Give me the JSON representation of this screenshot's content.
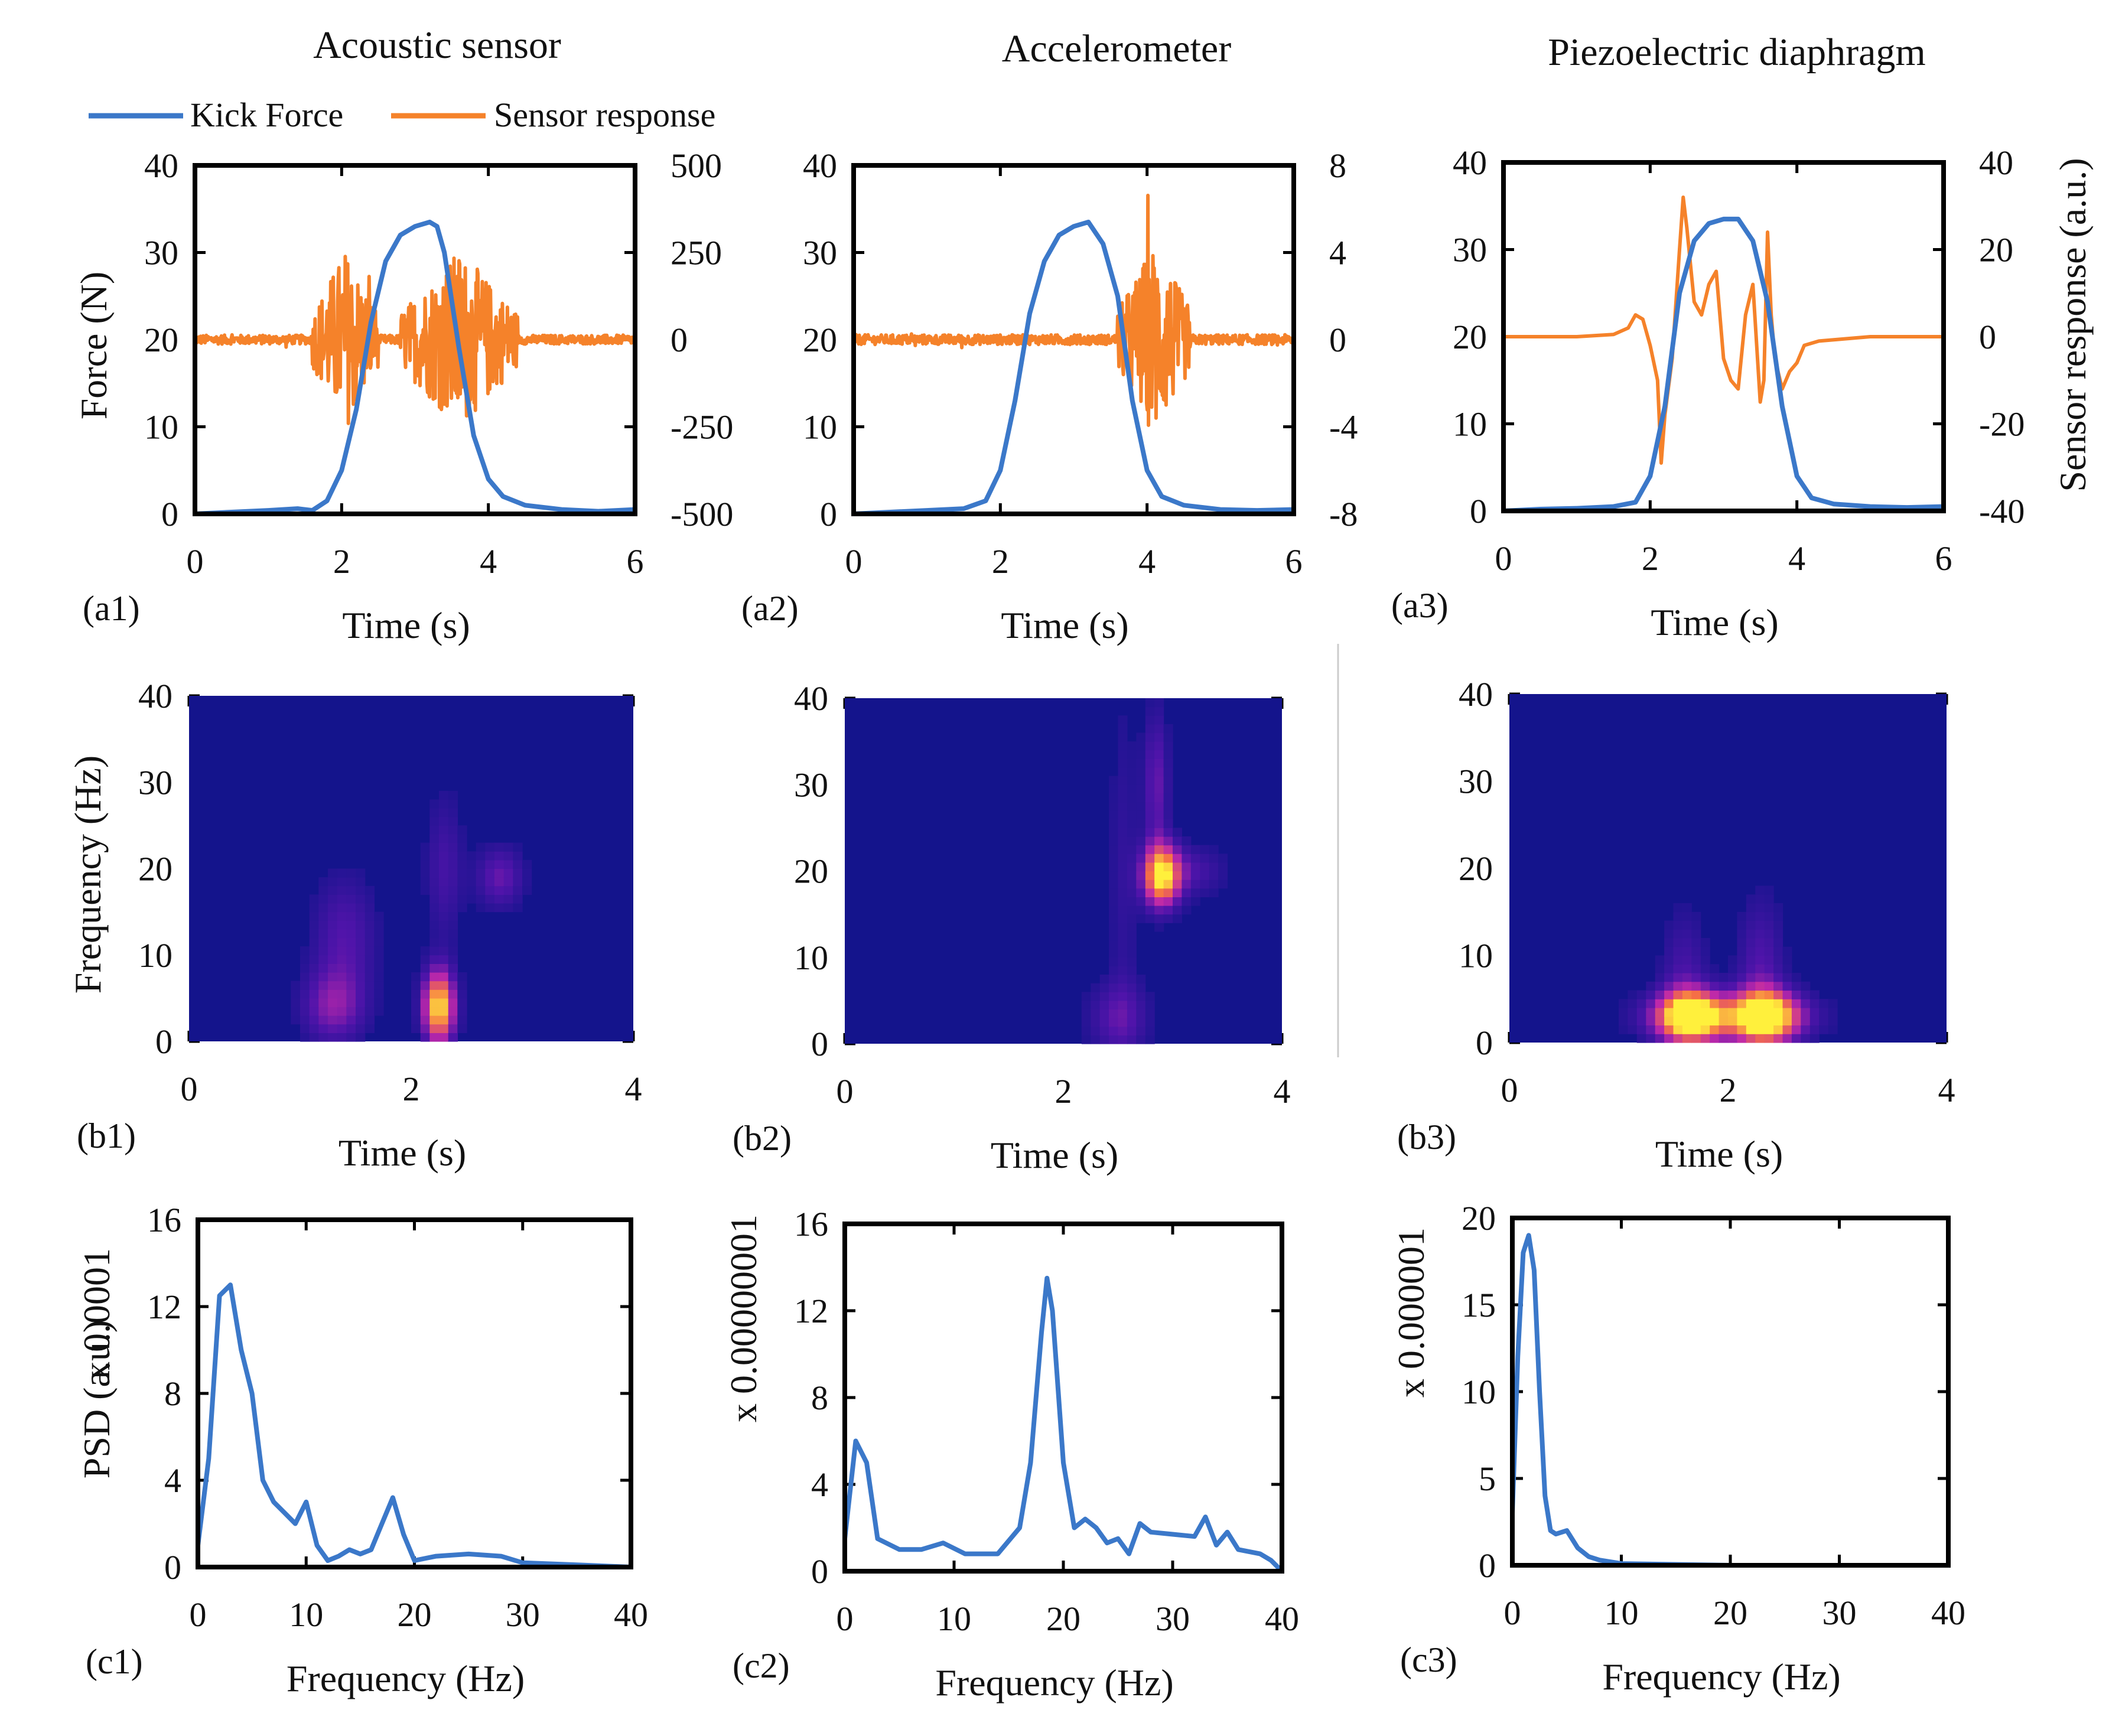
{
  "colors": {
    "force": "#3b78c9",
    "sensor": "#f5822a",
    "spec_bg": "#14148c"
  },
  "column_titles": [
    "Acoustic sensor",
    "Accelerometer",
    "Piezoelectric diaphragm"
  ],
  "legend": {
    "force": "Kick Force",
    "sensor": "Sensor response"
  },
  "chart_data": [
    {
      "id": "a1",
      "type": "line",
      "panel_label": "(a1)",
      "xlabel": "Time (s)",
      "ylabel": "Force (N)",
      "xlim": [
        0,
        6
      ],
      "xticks": [
        "0",
        "2",
        "4",
        "6"
      ],
      "ylim": [
        0,
        40
      ],
      "yticks": [
        "0",
        "10",
        "20",
        "30",
        "40"
      ],
      "y2lim": [
        -500,
        500
      ],
      "y2ticks": [
        "-500",
        "-250",
        "0",
        "250",
        "500"
      ],
      "series": [
        {
          "name": "Kick Force",
          "axis": "left",
          "x": [
            0,
            0.5,
            1,
            1.4,
            1.6,
            1.8,
            2.0,
            2.2,
            2.4,
            2.6,
            2.8,
            3.0,
            3.2,
            3.3,
            3.4,
            3.6,
            3.8,
            4.0,
            4.2,
            4.5,
            5,
            5.5,
            6
          ],
          "y": [
            0,
            0.2,
            0.4,
            0.6,
            0.4,
            1.5,
            5,
            12,
            22,
            29,
            32,
            33,
            33.5,
            33,
            30,
            19,
            9,
            4,
            2,
            1,
            0.5,
            0.3,
            0.5
          ]
        },
        {
          "name": "Sensor response",
          "axis": "right",
          "kind": "burst",
          "amplitude": 260,
          "ranges": [
            [
              1.6,
              2.5
            ],
            [
              2.8,
              4.4
            ]
          ]
        }
      ]
    },
    {
      "id": "a2",
      "type": "line",
      "panel_label": "(a2)",
      "xlabel": "Time (s)",
      "ylabel": "",
      "xlim": [
        0,
        6
      ],
      "xticks": [
        "0",
        "2",
        "4",
        "6"
      ],
      "ylim": [
        0,
        40
      ],
      "yticks": [
        "0",
        "10",
        "20",
        "30",
        "40"
      ],
      "y2lim": [
        -8,
        8
      ],
      "y2ticks": [
        "-8",
        "-4",
        "0",
        "4",
        "8"
      ],
      "series": [
        {
          "name": "Kick Force",
          "axis": "left",
          "x": [
            0,
            0.5,
            1,
            1.5,
            1.8,
            2.0,
            2.2,
            2.4,
            2.6,
            2.8,
            3.0,
            3.2,
            3.4,
            3.6,
            3.8,
            4.0,
            4.2,
            4.5,
            5,
            5.5,
            6
          ],
          "y": [
            0,
            0.2,
            0.4,
            0.6,
            1.5,
            5,
            13,
            23,
            29,
            32,
            33,
            33.5,
            31,
            25,
            13,
            5,
            2,
            1,
            0.5,
            0.4,
            0.5
          ]
        },
        {
          "name": "Sensor response",
          "axis": "right",
          "kind": "burst",
          "amplitude": 4.5,
          "ranges": [
            [
              3.6,
              4.6
            ]
          ]
        }
      ]
    },
    {
      "id": "a3",
      "type": "line",
      "panel_label": "(a3)",
      "xlabel": "Time (s)",
      "ylabel": "",
      "y2label": "Sensor response (a.u.)",
      "xlim": [
        0,
        6
      ],
      "xticks": [
        "0",
        "2",
        "4",
        "6"
      ],
      "ylim": [
        0,
        40
      ],
      "yticks": [
        "0",
        "10",
        "20",
        "30",
        "40"
      ],
      "y2lim": [
        -40,
        40
      ],
      "y2ticks": [
        "-40",
        "-20",
        "0",
        "20",
        "40"
      ],
      "series": [
        {
          "name": "Kick Force",
          "axis": "left",
          "x": [
            0,
            0.5,
            1,
            1.5,
            1.8,
            2.0,
            2.2,
            2.4,
            2.6,
            2.8,
            3.0,
            3.2,
            3.4,
            3.6,
            3.8,
            4.0,
            4.2,
            4.5,
            5,
            5.5,
            6
          ],
          "y": [
            0,
            0.2,
            0.3,
            0.5,
            1,
            4,
            12,
            25,
            31,
            33,
            33.5,
            33.5,
            31,
            24,
            12,
            4,
            1.5,
            0.8,
            0.5,
            0.4,
            0.5
          ]
        },
        {
          "name": "Sensor response",
          "axis": "right",
          "x": [
            0,
            1,
            1.5,
            1.7,
            1.8,
            1.9,
            2.0,
            2.1,
            2.15,
            2.2,
            2.3,
            2.4,
            2.45,
            2.5,
            2.6,
            2.7,
            2.8,
            2.9,
            3.0,
            3.1,
            3.2,
            3.3,
            3.4,
            3.5,
            3.55,
            3.6,
            3.65,
            3.7,
            3.8,
            3.9,
            4.0,
            4.1,
            4.3,
            5,
            6
          ],
          "y": [
            0,
            0,
            0.5,
            2,
            5,
            4,
            -2,
            -10,
            -29,
            -18,
            -5,
            20,
            32,
            25,
            8,
            5,
            12,
            15,
            -5,
            -10,
            -12,
            5,
            12,
            -15,
            -10,
            24,
            5,
            -5,
            -12,
            -8,
            -6,
            -2,
            -1,
            0,
            0
          ]
        }
      ]
    },
    {
      "id": "b1",
      "type": "heatmap",
      "panel_label": "(b1)",
      "xlabel": "Time (s)",
      "ylabel": "Frequency (Hz)",
      "xlim": [
        0,
        4
      ],
      "xticks": [
        "0",
        "2",
        "4"
      ],
      "ylim": [
        0,
        40
      ],
      "yticks": [
        "0",
        "10",
        "20",
        "30",
        "40"
      ],
      "hotspots": [
        {
          "t": 2.25,
          "f": 4,
          "intensity": 1.0,
          "st": 0.1,
          "sf": 3
        },
        {
          "t": 1.3,
          "f": 4,
          "intensity": 0.35,
          "st": 0.2,
          "sf": 3
        },
        {
          "t": 1.4,
          "f": 12,
          "intensity": 0.25,
          "st": 0.2,
          "sf": 5
        },
        {
          "t": 2.3,
          "f": 20,
          "intensity": 0.2,
          "st": 0.12,
          "sf": 6
        },
        {
          "t": 2.8,
          "f": 19,
          "intensity": 0.3,
          "st": 0.15,
          "sf": 2.5
        }
      ]
    },
    {
      "id": "b2",
      "type": "heatmap",
      "panel_label": "(b2)",
      "xlabel": "Time (s)",
      "ylabel": "",
      "xlim": [
        0,
        4
      ],
      "xticks": [
        "0",
        "2",
        "4"
      ],
      "ylim": [
        0,
        40
      ],
      "yticks": [
        "0",
        "10",
        "20",
        "30",
        "40"
      ],
      "hotspots": [
        {
          "t": 2.9,
          "f": 19.5,
          "intensity": 1.0,
          "st": 0.12,
          "sf": 2.5
        },
        {
          "t": 2.85,
          "f": 30,
          "intensity": 0.3,
          "st": 0.08,
          "sf": 6
        },
        {
          "t": 2.5,
          "f": 3,
          "intensity": 0.25,
          "st": 0.2,
          "sf": 3
        },
        {
          "t": 2.55,
          "f": 20,
          "intensity": 0.12,
          "st": 0.1,
          "sf": 15
        },
        {
          "t": 3.2,
          "f": 20,
          "intensity": 0.2,
          "st": 0.2,
          "sf": 2
        }
      ]
    },
    {
      "id": "b3",
      "type": "heatmap",
      "panel_label": "(b3)",
      "xlabel": "Time (s)",
      "ylabel": "",
      "xlim": [
        0,
        4
      ],
      "xticks": [
        "0",
        "2",
        "4"
      ],
      "ylim": [
        0,
        40
      ],
      "yticks": [
        "0",
        "10",
        "20",
        "30",
        "40"
      ],
      "hotspots": [
        {
          "t": 1.65,
          "f": 3,
          "intensity": 1.0,
          "st": 0.2,
          "sf": 2
        },
        {
          "t": 2.35,
          "f": 3,
          "intensity": 0.95,
          "st": 0.2,
          "sf": 2
        },
        {
          "t": 2.0,
          "f": 3,
          "intensity": 0.45,
          "st": 0.5,
          "sf": 2
        },
        {
          "t": 2.3,
          "f": 8,
          "intensity": 0.25,
          "st": 0.15,
          "sf": 6
        },
        {
          "t": 1.6,
          "f": 8,
          "intensity": 0.2,
          "st": 0.15,
          "sf": 5
        }
      ]
    },
    {
      "id": "c1",
      "type": "line",
      "panel_label": "(c1)",
      "xlabel": "Frequency (Hz)",
      "ylabel": "PSD (a.u.)",
      "scale_label": "x 0.0001",
      "xlim": [
        0,
        40
      ],
      "xticks": [
        "0",
        "10",
        "20",
        "30",
        "40"
      ],
      "ylim": [
        0,
        16
      ],
      "yticks": [
        "0",
        "4",
        "8",
        "12",
        "16"
      ],
      "series": [
        {
          "name": "PSD",
          "x": [
            0,
            1,
            2,
            3,
            4,
            5,
            6,
            7,
            8,
            9,
            10,
            11,
            12,
            13,
            14,
            15,
            16,
            17,
            18,
            19,
            20,
            22,
            25,
            28,
            30,
            35,
            40
          ],
          "y": [
            1,
            5,
            12.5,
            13,
            10,
            8,
            4,
            3,
            2.5,
            2,
            3,
            1,
            0.3,
            0.5,
            0.8,
            0.6,
            0.8,
            2,
            3.2,
            1.5,
            0.3,
            0.5,
            0.6,
            0.5,
            0.2,
            0.1,
            0
          ]
        }
      ]
    },
    {
      "id": "c2",
      "type": "line",
      "panel_label": "(c2)",
      "xlabel": "Frequency (Hz)",
      "ylabel": "",
      "scale_label": "x 0.00000001",
      "xlim": [
        0,
        40
      ],
      "xticks": [
        "0",
        "10",
        "20",
        "30",
        "40"
      ],
      "ylim": [
        0,
        16
      ],
      "yticks": [
        "0",
        "4",
        "8",
        "12",
        "16"
      ],
      "series": [
        {
          "name": "PSD",
          "x": [
            0,
            1,
            2,
            3,
            5,
            7,
            9,
            11,
            14,
            16,
            17,
            18,
            18.5,
            19,
            20,
            21,
            22,
            23,
            24,
            25,
            26,
            27,
            28,
            30,
            32,
            33,
            34,
            35,
            36,
            38,
            39,
            40
          ],
          "y": [
            1.5,
            6,
            5,
            1.5,
            1,
            1,
            1.3,
            0.8,
            0.8,
            2,
            5,
            11,
            13.5,
            12,
            5,
            2,
            2.4,
            2,
            1.3,
            1.5,
            0.8,
            2.2,
            1.8,
            1.7,
            1.6,
            2.5,
            1.2,
            1.8,
            1,
            0.8,
            0.5,
            0
          ]
        }
      ]
    },
    {
      "id": "c3",
      "type": "line",
      "panel_label": "(c3)",
      "xlabel": "Frequency (Hz)",
      "ylabel": "",
      "scale_label": "x 0.000001",
      "xlim": [
        0,
        40
      ],
      "xticks": [
        "0",
        "10",
        "20",
        "30",
        "40"
      ],
      "ylim": [
        0,
        20
      ],
      "yticks": [
        "0",
        "5",
        "10",
        "15",
        "20"
      ],
      "series": [
        {
          "name": "PSD",
          "x": [
            0,
            0.5,
            1,
            1.5,
            2,
            2.5,
            3,
            3.5,
            4,
            5,
            6,
            7,
            8,
            10,
            20,
            30,
            40
          ],
          "y": [
            3,
            12,
            18,
            19,
            17,
            10,
            4,
            2,
            1.8,
            2,
            1,
            0.5,
            0.3,
            0.1,
            0,
            0,
            0
          ]
        }
      ]
    }
  ]
}
